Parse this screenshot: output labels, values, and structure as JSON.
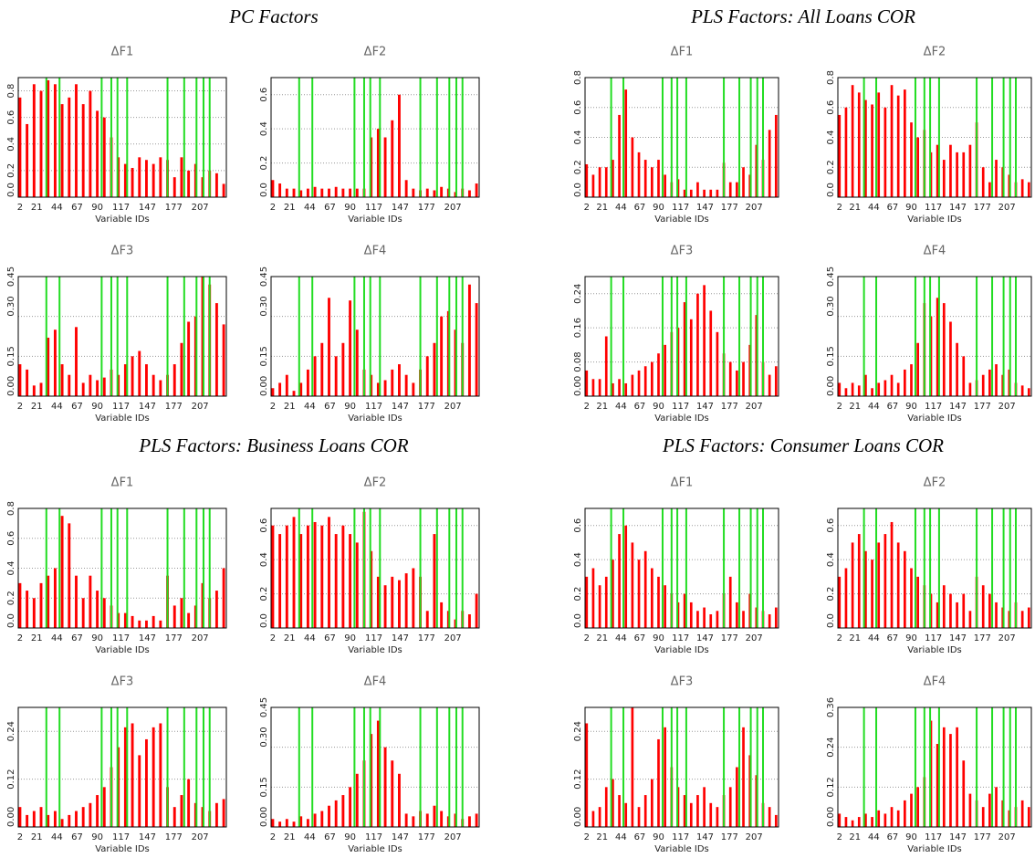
{
  "group_titles": [
    "PC Factors",
    "PLS Factors: All Loans COR",
    "PLS Factors: Business Loans COR",
    "PLS Factors: Consumer Loans COR"
  ],
  "bar_x": [
    2,
    10,
    18,
    26,
    34,
    42,
    50,
    58,
    66,
    74,
    82,
    90,
    98,
    106,
    114,
    122,
    130,
    138,
    146,
    154,
    162,
    170,
    178,
    186,
    194,
    202,
    210,
    218,
    226,
    234
  ],
  "highlight_x": [
    32,
    47,
    95,
    106,
    113,
    124,
    170,
    189,
    203,
    211,
    218
  ],
  "xlim": [
    0,
    237
  ],
  "xticks": [
    2,
    21,
    44,
    67,
    90,
    117,
    147,
    177,
    207
  ],
  "chart_data": [
    {
      "type": "bar",
      "title": "ΔF1",
      "xlabel": "Variable IDs",
      "color": "#ff0000",
      "highlight_color": "#22dd22",
      "grid": true,
      "ylim": [
        0,
        0.9
      ],
      "yticks": [
        {
          "value": 0,
          "label": "0.0"
        },
        0.2,
        0.4,
        0.6,
        0.8
      ],
      "values": [
        0.75,
        0.55,
        0.85,
        0.8,
        0.88,
        0.85,
        0.7,
        0.75,
        0.85,
        0.7,
        0.8,
        0.65,
        0.6,
        0.45,
        0.3,
        0.25,
        0.22,
        0.3,
        0.28,
        0.25,
        0.3,
        0.28,
        0.15,
        0.3,
        0.2,
        0.25,
        0.15,
        0.2,
        0.18,
        0.1
      ]
    },
    {
      "type": "bar",
      "title": "ΔF2",
      "xlabel": "Variable IDs",
      "color": "#ff0000",
      "highlight_color": "#22dd22",
      "grid": true,
      "ylim": [
        0,
        0.7
      ],
      "yticks": [
        {
          "value": 0,
          "label": "0.0"
        },
        0.2,
        0.4,
        0.6
      ],
      "values": [
        0.1,
        0.08,
        0.05,
        0.05,
        0.04,
        0.05,
        0.06,
        0.05,
        0.05,
        0.06,
        0.05,
        0.05,
        0.05,
        0.05,
        0.35,
        0.4,
        0.35,
        0.45,
        0.6,
        0.1,
        0.05,
        0.04,
        0.05,
        0.04,
        0.06,
        0.05,
        0.03,
        0.05,
        0.04,
        0.08
      ]
    },
    {
      "type": "bar",
      "title": "ΔF3",
      "xlabel": "Variable IDs",
      "color": "#ff0000",
      "highlight_color": "#22dd22",
      "grid": true,
      "ylim": [
        0,
        0.45
      ],
      "yticks": [
        {
          "value": 0,
          "label": "0.00"
        },
        0.15,
        {
          "value": 0.3,
          "label": "0.30"
        },
        0.45
      ],
      "values": [
        0.12,
        0.1,
        0.04,
        0.05,
        0.22,
        0.25,
        0.12,
        0.08,
        0.26,
        0.05,
        0.08,
        0.06,
        0.07,
        0.1,
        0.08,
        0.12,
        0.15,
        0.17,
        0.12,
        0.08,
        0.06,
        0.08,
        0.12,
        0.2,
        0.28,
        0.3,
        0.45,
        0.42,
        0.35,
        0.27
      ]
    },
    {
      "type": "bar",
      "title": "ΔF4",
      "xlabel": "Variable IDs",
      "color": "#ff0000",
      "highlight_color": "#22dd22",
      "grid": true,
      "ylim": [
        0,
        0.45
      ],
      "yticks": [
        {
          "value": 0,
          "label": "0.00"
        },
        0.15,
        {
          "value": 0.3,
          "label": "0.30"
        },
        0.45
      ],
      "values": [
        0.03,
        0.05,
        0.08,
        0.02,
        0.05,
        0.1,
        0.15,
        0.2,
        0.37,
        0.15,
        0.2,
        0.36,
        0.25,
        0.1,
        0.08,
        0.05,
        0.06,
        0.1,
        0.12,
        0.08,
        0.05,
        0.1,
        0.15,
        0.2,
        0.3,
        0.32,
        0.25,
        0.2,
        0.42,
        0.35
      ]
    },
    {
      "type": "bar",
      "title": "ΔF1",
      "xlabel": "Variable IDs",
      "color": "#ff0000",
      "highlight_color": "#22dd22",
      "grid": true,
      "ylim": [
        0,
        0.8
      ],
      "yticks": [
        {
          "value": 0,
          "label": "0.0"
        },
        0.2,
        0.4,
        0.6,
        0.8
      ],
      "values": [
        0.22,
        0.15,
        0.2,
        0.2,
        0.25,
        0.55,
        0.72,
        0.4,
        0.3,
        0.25,
        0.2,
        0.25,
        0.15,
        0.1,
        0.12,
        0.05,
        0.05,
        0.1,
        0.05,
        0.05,
        0.05,
        0.23,
        0.1,
        0.1,
        0.2,
        0.15,
        0.35,
        0.25,
        0.45,
        0.55
      ]
    },
    {
      "type": "bar",
      "title": "ΔF2",
      "xlabel": "Variable IDs",
      "color": "#ff0000",
      "highlight_color": "#22dd22",
      "grid": true,
      "ylim": [
        0,
        0.8
      ],
      "yticks": [
        {
          "value": 0,
          "label": "0.0"
        },
        0.2,
        0.4,
        0.6,
        0.8
      ],
      "values": [
        0.55,
        0.6,
        0.75,
        0.7,
        0.65,
        0.62,
        0.7,
        0.6,
        0.75,
        0.68,
        0.72,
        0.5,
        0.4,
        0.45,
        0.3,
        0.35,
        0.25,
        0.35,
        0.3,
        0.3,
        0.35,
        0.5,
        0.2,
        0.1,
        0.25,
        0.2,
        0.15,
        0.1,
        0.12,
        0.1
      ]
    },
    {
      "type": "bar",
      "title": "ΔF3",
      "xlabel": "Variable IDs",
      "color": "#ff0000",
      "highlight_color": "#22dd22",
      "grid": true,
      "ylim": [
        0,
        0.28
      ],
      "yticks": [
        {
          "value": 0,
          "label": "0.00"
        },
        0.08,
        0.16,
        0.24
      ],
      "values": [
        0.06,
        0.04,
        0.04,
        0.14,
        0.03,
        0.04,
        0.03,
        0.05,
        0.06,
        0.07,
        0.08,
        0.1,
        0.12,
        0.15,
        0.16,
        0.22,
        0.18,
        0.24,
        0.26,
        0.2,
        0.15,
        0.1,
        0.08,
        0.06,
        0.08,
        0.12,
        0.19,
        0.08,
        0.05,
        0.07
      ]
    },
    {
      "type": "bar",
      "title": "ΔF4",
      "xlabel": "Variable IDs",
      "color": "#ff0000",
      "highlight_color": "#22dd22",
      "grid": true,
      "ylim": [
        0,
        0.45
      ],
      "yticks": [
        {
          "value": 0,
          "label": "0.00"
        },
        0.15,
        {
          "value": 0.3,
          "label": "0.30"
        },
        0.45
      ],
      "values": [
        0.05,
        0.03,
        0.05,
        0.04,
        0.08,
        0.03,
        0.05,
        0.06,
        0.08,
        0.05,
        0.1,
        0.12,
        0.2,
        0.35,
        0.3,
        0.37,
        0.35,
        0.28,
        0.2,
        0.15,
        0.05,
        0.06,
        0.08,
        0.1,
        0.12,
        0.08,
        0.1,
        0.05,
        0.04,
        0.03
      ]
    },
    {
      "type": "bar",
      "title": "ΔF1",
      "xlabel": "Variable IDs",
      "color": "#ff0000",
      "highlight_color": "#22dd22",
      "grid": true,
      "ylim": [
        0,
        0.8
      ],
      "yticks": [
        {
          "value": 0,
          "label": "0.0"
        },
        0.2,
        0.4,
        0.6,
        0.8
      ],
      "values": [
        0.3,
        0.25,
        0.2,
        0.3,
        0.35,
        0.4,
        0.75,
        0.7,
        0.35,
        0.2,
        0.35,
        0.25,
        0.2,
        0.15,
        0.1,
        0.1,
        0.08,
        0.05,
        0.05,
        0.08,
        0.05,
        0.35,
        0.15,
        0.2,
        0.1,
        0.15,
        0.3,
        0.2,
        0.25,
        0.4
      ]
    },
    {
      "type": "bar",
      "title": "ΔF2",
      "xlabel": "Variable IDs",
      "color": "#ff0000",
      "highlight_color": "#22dd22",
      "grid": true,
      "ylim": [
        0,
        0.7
      ],
      "yticks": [
        {
          "value": 0,
          "label": "0.0"
        },
        0.2,
        0.4,
        0.6
      ],
      "values": [
        0.6,
        0.55,
        0.6,
        0.65,
        0.55,
        0.6,
        0.62,
        0.6,
        0.65,
        0.55,
        0.6,
        0.55,
        0.5,
        0.68,
        0.45,
        0.3,
        0.25,
        0.3,
        0.28,
        0.32,
        0.35,
        0.3,
        0.1,
        0.55,
        0.15,
        0.1,
        0.05,
        0.1,
        0.08,
        0.2
      ]
    },
    {
      "type": "bar",
      "title": "ΔF3",
      "xlabel": "Variable IDs",
      "color": "#ff0000",
      "highlight_color": "#22dd22",
      "grid": true,
      "ylim": [
        0,
        0.3
      ],
      "yticks": [
        {
          "value": 0,
          "label": "0.00"
        },
        0.12,
        0.24
      ],
      "values": [
        0.05,
        0.03,
        0.04,
        0.05,
        0.03,
        0.04,
        0.02,
        0.03,
        0.04,
        0.05,
        0.06,
        0.08,
        0.1,
        0.15,
        0.2,
        0.25,
        0.26,
        0.18,
        0.22,
        0.25,
        0.26,
        0.1,
        0.05,
        0.08,
        0.12,
        0.06,
        0.05,
        0.04,
        0.06,
        0.07
      ]
    },
    {
      "type": "bar",
      "title": "ΔF4",
      "xlabel": "Variable IDs",
      "color": "#ff0000",
      "highlight_color": "#22dd22",
      "grid": true,
      "ylim": [
        0,
        0.45
      ],
      "yticks": [
        {
          "value": 0,
          "label": "0.00"
        },
        0.15,
        {
          "value": 0.3,
          "label": "0.30"
        },
        0.45
      ],
      "values": [
        0.03,
        0.02,
        0.03,
        0.02,
        0.04,
        0.03,
        0.05,
        0.06,
        0.08,
        0.1,
        0.12,
        0.15,
        0.2,
        0.25,
        0.35,
        0.4,
        0.3,
        0.25,
        0.2,
        0.05,
        0.04,
        0.06,
        0.05,
        0.08,
        0.06,
        0.04,
        0.05,
        0.03,
        0.04,
        0.05
      ]
    },
    {
      "type": "bar",
      "title": "ΔF1",
      "xlabel": "Variable IDs",
      "color": "#ff0000",
      "highlight_color": "#22dd22",
      "grid": true,
      "ylim": [
        0,
        0.7
      ],
      "yticks": [
        {
          "value": 0,
          "label": "0.0"
        },
        0.2,
        0.4,
        0.6
      ],
      "values": [
        0.3,
        0.35,
        0.25,
        0.3,
        0.4,
        0.55,
        0.6,
        0.5,
        0.4,
        0.45,
        0.35,
        0.3,
        0.25,
        0.2,
        0.15,
        0.2,
        0.15,
        0.1,
        0.12,
        0.08,
        0.1,
        0.2,
        0.3,
        0.15,
        0.1,
        0.2,
        0.12,
        0.1,
        0.08,
        0.12
      ]
    },
    {
      "type": "bar",
      "title": "ΔF2",
      "xlabel": "Variable IDs",
      "color": "#ff0000",
      "highlight_color": "#22dd22",
      "grid": true,
      "ylim": [
        0,
        0.7
      ],
      "yticks": [
        {
          "value": 0,
          "label": "0.0"
        },
        0.2,
        0.4,
        0.6
      ],
      "values": [
        0.3,
        0.35,
        0.5,
        0.55,
        0.45,
        0.4,
        0.5,
        0.55,
        0.62,
        0.5,
        0.45,
        0.35,
        0.3,
        0.25,
        0.2,
        0.15,
        0.25,
        0.2,
        0.15,
        0.2,
        0.1,
        0.3,
        0.25,
        0.2,
        0.15,
        0.12,
        0.1,
        0.15,
        0.1,
        0.12
      ]
    },
    {
      "type": "bar",
      "title": "ΔF3",
      "xlabel": "Variable IDs",
      "color": "#ff0000",
      "highlight_color": "#22dd22",
      "grid": true,
      "ylim": [
        0,
        0.3
      ],
      "yticks": [
        {
          "value": 0,
          "label": "0.00"
        },
        0.12,
        0.24
      ],
      "values": [
        0.26,
        0.04,
        0.05,
        0.1,
        0.12,
        0.08,
        0.06,
        0.3,
        0.05,
        0.08,
        0.12,
        0.22,
        0.25,
        0.15,
        0.1,
        0.08,
        0.06,
        0.08,
        0.1,
        0.06,
        0.05,
        0.08,
        0.1,
        0.15,
        0.25,
        0.18,
        0.13,
        0.06,
        0.05,
        0.03
      ]
    },
    {
      "type": "bar",
      "title": "ΔF4",
      "xlabel": "Variable IDs",
      "color": "#ff0000",
      "highlight_color": "#22dd22",
      "grid": true,
      "ylim": [
        0,
        0.36
      ],
      "yticks": [
        {
          "value": 0,
          "label": "0.00"
        },
        0.12,
        0.24,
        0.36
      ],
      "values": [
        0.04,
        0.03,
        0.02,
        0.03,
        0.04,
        0.03,
        0.05,
        0.04,
        0.06,
        0.05,
        0.08,
        0.1,
        0.12,
        0.15,
        0.32,
        0.25,
        0.3,
        0.28,
        0.3,
        0.2,
        0.1,
        0.08,
        0.06,
        0.1,
        0.12,
        0.08,
        0.05,
        0.06,
        0.08,
        0.06
      ]
    }
  ]
}
